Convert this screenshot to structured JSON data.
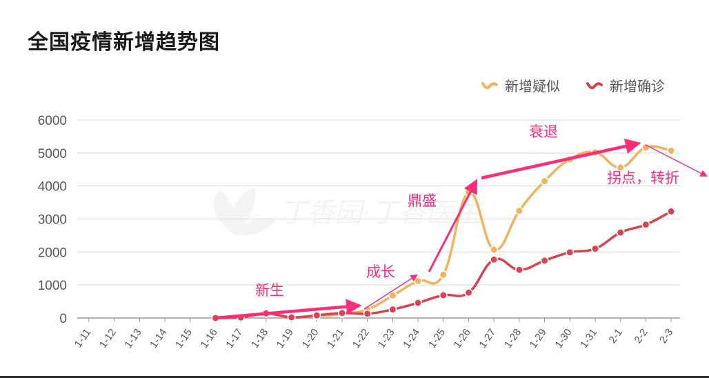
{
  "title": "全国疫情新增趋势图",
  "watermark": "丁香园·丁香医生",
  "annotations": {
    "birth": "新生",
    "growth": "成长",
    "peak": "鼎盛",
    "decline": "衰退",
    "turning": "拐点，转折"
  },
  "colors": {
    "suspected": "#f2b25c",
    "confirmed": "#d9434f",
    "arrow": "#ff2d78",
    "grid": "#d8d8d8",
    "axis_text": "#555555"
  },
  "chart_data": {
    "type": "line",
    "categories": [
      "1-11",
      "1-12",
      "1-13",
      "1-14",
      "1-15",
      "1-16",
      "1-17",
      "1-18",
      "1-19",
      "1-20",
      "1-21",
      "1-22",
      "1-23",
      "1-24",
      "1-25",
      "1-26",
      "1-27",
      "1-28",
      "1-29",
      "1-30",
      "1-31",
      "2-1",
      "2-2",
      "2-3"
    ],
    "ylim": [
      0,
      6000
    ],
    "yticks": [
      0,
      1000,
      2000,
      3000,
      4000,
      5000,
      6000
    ],
    "legend_position": "top-right",
    "grid": true,
    "series": [
      {
        "name": "新增疑似",
        "color": "#f2b25c",
        "values": [
          null,
          null,
          null,
          null,
          null,
          0,
          27,
          130,
          20,
          60,
          120,
          260,
          680,
          1120,
          1310,
          3800,
          2070,
          3250,
          4150,
          4810,
          5020,
          4560,
          5170,
          5070
        ]
      },
      {
        "name": "新增确诊",
        "color": "#d9434f",
        "values": [
          null,
          null,
          null,
          null,
          null,
          0,
          17,
          140,
          20,
          80,
          150,
          130,
          260,
          460,
          690,
          770,
          1770,
          1460,
          1740,
          1990,
          2100,
          2590,
          2830,
          3230
        ]
      }
    ]
  }
}
